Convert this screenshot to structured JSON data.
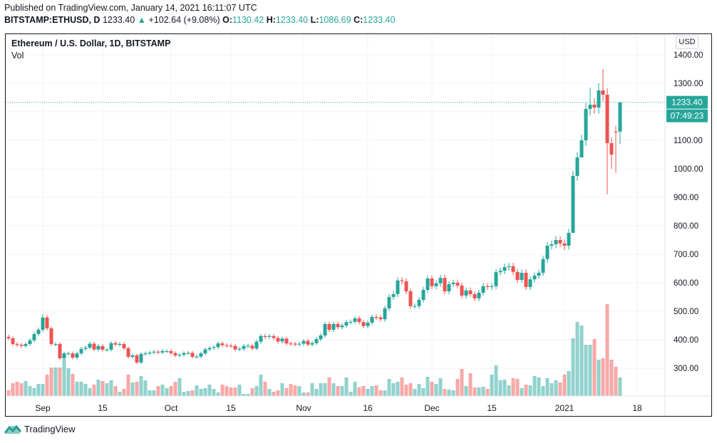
{
  "header": {
    "published": "Published on TradingView.com, January 14, 2021 16:11:07 UTC",
    "symbol": "BITSTAMP:ETHUSD, D",
    "last": "1233.40",
    "change": "+102.64 (+9.08%)",
    "o_label": "O:",
    "o": "1130.42",
    "h_label": "H:",
    "h": "1233.40",
    "l_label": "L:",
    "l": "1086.69",
    "c_label": "C:",
    "c": "1233.40"
  },
  "legend": {
    "title": "Ethereum / U.S. Dollar, 1D, BITSTAMP",
    "vol": "Vol"
  },
  "currency": "USD",
  "price_label": "1233.40",
  "countdown": "07:49:23",
  "footer": {
    "brand": "TradingView"
  },
  "colors": {
    "up": "#26a69a",
    "down": "#ef5350",
    "grid": "#f0f3fa"
  },
  "chart_data": {
    "type": "candlestick",
    "title": "Ethereum / U.S. Dollar, 1D, BITSTAMP",
    "start_date": "2020-08-24",
    "interval": "1D",
    "ylim": [
      210,
      1470
    ],
    "y_ticks": [
      "1400.00",
      "1300.00",
      "1100.00",
      "1000.00",
      "900.00",
      "800.00",
      "700.00",
      "600.00",
      "500.00",
      "400.00",
      "300.00"
    ],
    "x_ticks": [
      {
        "label": "Sep",
        "index": 8
      },
      {
        "label": "15",
        "index": 22
      },
      {
        "label": "Oct",
        "index": 38
      },
      {
        "label": "15",
        "index": 52
      },
      {
        "label": "Nov",
        "index": 69
      },
      {
        "label": "16",
        "index": 84
      },
      {
        "label": "Dec",
        "index": 99
      },
      {
        "label": "15",
        "index": 113
      },
      {
        "label": "2021",
        "index": 130
      },
      {
        "label": "18",
        "index": 147
      }
    ],
    "closes": [
      405,
      385,
      382,
      378,
      385,
      398,
      420,
      435,
      478,
      440,
      385,
      385,
      335,
      352,
      352,
      337,
      352,
      368,
      372,
      386,
      366,
      378,
      365,
      365,
      388,
      383,
      385,
      370,
      340,
      345,
      320,
      350,
      352,
      355,
      358,
      355,
      360,
      360,
      353,
      345,
      347,
      353,
      354,
      340,
      341,
      352,
      366,
      371,
      374,
      387,
      381,
      379,
      378,
      366,
      368,
      378,
      379,
      369,
      393,
      413,
      410,
      413,
      406,
      394,
      404,
      387,
      386,
      383,
      386,
      396,
      383,
      388,
      402,
      415,
      455,
      435,
      455,
      444,
      450,
      462,
      463,
      475,
      462,
      448,
      460,
      480,
      478,
      472,
      510,
      550,
      560,
      608,
      605,
      570,
      518,
      518,
      540,
      575,
      615,
      588,
      598,
      617,
      570,
      595,
      600,
      590,
      555,
      573,
      560,
      545,
      565,
      588,
      585,
      588,
      637,
      642,
      655,
      658,
      638,
      610,
      635,
      585,
      612,
      625,
      635,
      683,
      730,
      735,
      750,
      738,
      730,
      775,
      975,
      1040,
      1100,
      1210,
      1225,
      1215,
      1275,
      1260,
      1090,
      1050,
      1130,
      1233.4
    ],
    "first_open": 410,
    "wick_overrides": {
      "8": {
        "high": 490
      },
      "130": {
        "low": 715
      },
      "132": {
        "low": 890
      },
      "134": {
        "low": 1060
      },
      "136": {
        "high": 1285
      },
      "138": {
        "high": 1300
      },
      "139": {
        "high": 1350
      },
      "140": {
        "low": 910
      },
      "141": {
        "low": 1000
      },
      "142": {
        "low": 985,
        "open": 1130.42
      },
      "143": {
        "open": 1130.42,
        "high": 1233.4,
        "low": 1086.69
      }
    },
    "volume_relative": [
      8,
      18,
      20,
      18,
      21,
      14,
      11,
      17,
      17,
      30,
      40,
      40,
      40,
      52,
      39,
      31,
      20,
      20,
      17,
      11,
      16,
      23,
      21,
      18,
      22,
      14,
      6,
      10,
      30,
      19,
      20,
      28,
      22,
      8,
      8,
      14,
      16,
      11,
      14,
      20,
      25,
      6,
      7,
      8,
      15,
      10,
      11,
      16,
      10,
      5,
      16,
      14,
      12,
      12,
      16,
      3,
      3,
      11,
      14,
      30,
      20,
      10,
      6,
      8,
      18,
      11,
      17,
      15,
      14,
      5,
      5,
      18,
      10,
      18,
      18,
      26,
      18,
      14,
      14,
      26,
      6,
      20,
      12,
      14,
      10,
      14,
      15,
      8,
      8,
      24,
      18,
      20,
      26,
      16,
      18,
      10,
      17,
      11,
      27,
      20,
      17,
      25,
      10,
      9,
      8,
      24,
      38,
      14,
      32,
      12,
      12,
      13,
      10,
      30,
      43,
      22,
      23,
      15,
      25,
      24,
      11,
      16,
      15,
      28,
      26,
      14,
      25,
      18,
      22,
      19,
      30,
      35,
      81,
      104,
      99,
      72,
      72,
      80,
      51,
      53,
      129,
      51,
      41,
      26
    ]
  }
}
